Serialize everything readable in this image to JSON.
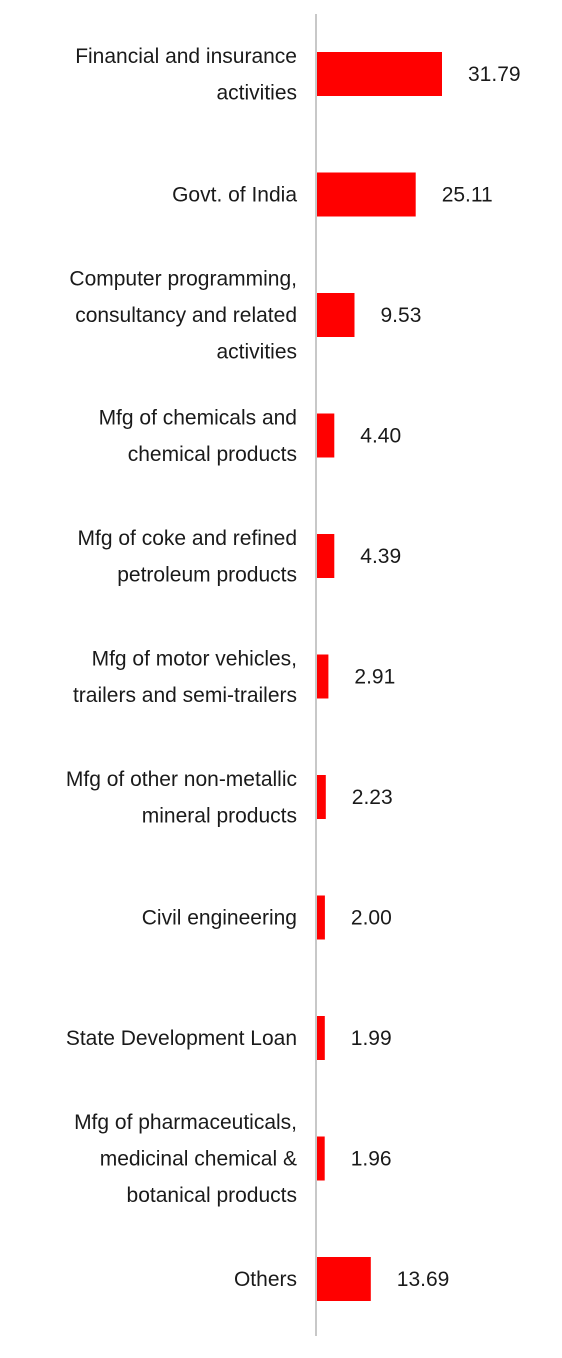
{
  "chart_data": {
    "type": "bar",
    "orientation": "horizontal",
    "categories": [
      [
        "Financial and insurance",
        "activities"
      ],
      [
        "Govt. of India"
      ],
      [
        "Computer programming,",
        "consultancy and related",
        "activities"
      ],
      [
        "Mfg of chemicals and",
        "chemical products"
      ],
      [
        "Mfg of coke and refined",
        "petroleum products"
      ],
      [
        "Mfg of motor vehicles,",
        "trailers and semi-trailers"
      ],
      [
        "Mfg of other non-metallic",
        "mineral products"
      ],
      [
        "Civil engineering"
      ],
      [
        "State Development Loan"
      ],
      [
        "Mfg of pharmaceuticals,",
        "medicinal chemical &",
        "botanical products"
      ],
      [
        "Others"
      ]
    ],
    "values": [
      31.79,
      25.11,
      9.53,
      4.4,
      4.39,
      2.91,
      2.23,
      2.0,
      1.99,
      1.96,
      13.69
    ],
    "value_labels": [
      "31.79",
      "25.11",
      "9.53",
      "4.40",
      "4.39",
      "2.91",
      "2.23",
      "2.00",
      "1.99",
      "1.96",
      "13.69"
    ],
    "xlim": [
      0,
      31.79
    ],
    "bar_color": "#ff0000",
    "axis_color": "#c8c8c8",
    "grid": false,
    "legend": "none"
  }
}
